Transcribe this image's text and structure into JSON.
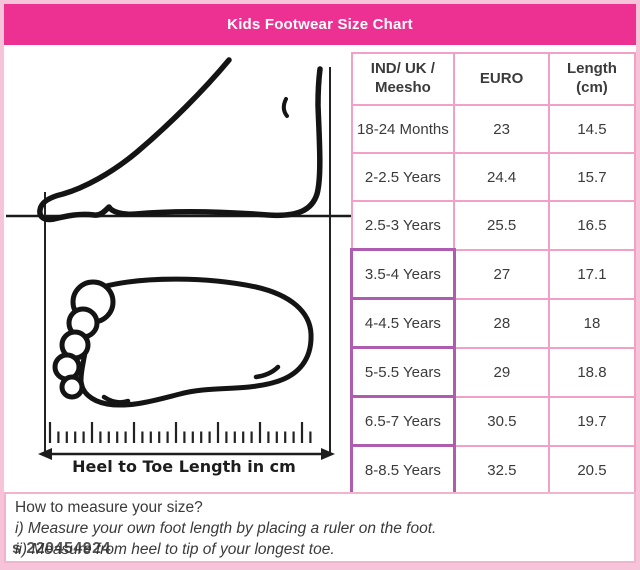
{
  "title": "Kids Footwear Size Chart",
  "diagram": {
    "ruler_label": "Heel to Toe Length in cm"
  },
  "table": {
    "columns": [
      {
        "line1": "IND/ UK /",
        "line2": "Meesho"
      },
      {
        "line1": "EURO",
        "line2": ""
      },
      {
        "line1": "Length",
        "line2": "(cm)"
      }
    ],
    "rows": [
      {
        "age": "18-24 Months",
        "euro": "23",
        "length_cm": "14.5"
      },
      {
        "age": "2-2.5 Years",
        "euro": "24.4",
        "length_cm": "15.7"
      },
      {
        "age": "2.5-3 Years",
        "euro": "25.5",
        "length_cm": "16.5"
      },
      {
        "age": "3.5-4 Years",
        "euro": "27",
        "length_cm": "17.1"
      },
      {
        "age": "4-4.5 Years",
        "euro": "28",
        "length_cm": "18"
      },
      {
        "age": "5-5.5 Years",
        "euro": "29",
        "length_cm": "18.8"
      },
      {
        "age": "6.5-7 Years",
        "euro": "30.5",
        "length_cm": "19.7"
      },
      {
        "age": "8-8.5 Years",
        "euro": "32.5",
        "length_cm": "20.5"
      }
    ]
  },
  "instructions": {
    "heading": "How to measure your size?",
    "step1": "i) Measure your own foot length by placing a ruler on the foot.",
    "step2": "ii) Measure from heel to tip of your longest toe."
  },
  "watermark": "s 220454924",
  "colors": {
    "header_bg": "#ec3192",
    "frame": "#f6c3d8",
    "table_border": "#f2a0c5",
    "highlight_border": "#ae5cb0",
    "text": "#3b3b3b"
  }
}
